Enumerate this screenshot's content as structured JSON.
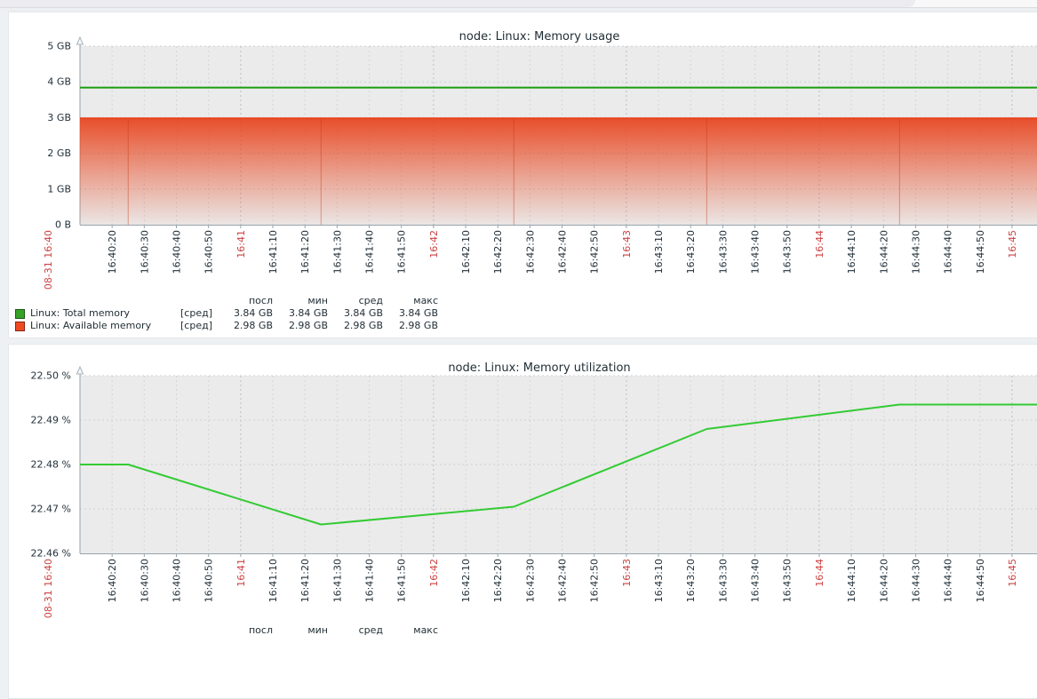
{
  "window": {
    "top_strip": {
      "active_area_color": "#ecebef",
      "rest_color": "#f8f8f9"
    }
  },
  "colors": {
    "page_background": "#eef1f3",
    "panel_background": "#ffffff",
    "plot_background": "#ebebeb",
    "grid_line": "#d5d5d5",
    "grid_minute_line": "#b6c0c8",
    "grid_horizontal_line": "#cdd2d6",
    "axis": "#96a3ab",
    "label_text": "#22303a",
    "minute_label_red": "#cc4242",
    "total_memory_green": "#1a9c14",
    "available_memory_red": "#e8431c",
    "utilization_green": "#33cb33",
    "legend_green_swatch": "#36a227",
    "legend_red_swatch": "#f04a22"
  },
  "x_axis": {
    "first_label": "08-31 16:40",
    "labels": [
      "16:40:20",
      "16:40:30",
      "16:40:40",
      "16:40:50",
      "16:41",
      "16:41:10",
      "16:41:20",
      "16:41:30",
      "16:41:40",
      "16:41:50",
      "16:42",
      "16:42:10",
      "16:42:20",
      "16:42:30",
      "16:42:40",
      "16:42:50",
      "16:43",
      "16:43:10",
      "16:43:20",
      "16:43:30",
      "16:43:40",
      "16:43:50",
      "16:44",
      "16:44:10",
      "16:44:20",
      "16:44:30",
      "16:44:40",
      "16:44:50",
      "16:45"
    ]
  },
  "charts": [
    {
      "title": "node: Linux: Memory usage",
      "y_axis_labels": [
        "5 GB",
        "4 GB",
        "3 GB",
        "2 GB",
        "1 GB",
        "0 B"
      ],
      "legend": {
        "headers": [
          "посл",
          "мин",
          "сред",
          "макс"
        ],
        "rows": [
          {
            "swatch_color": "#36a227",
            "name": "Linux: Total memory",
            "func": "[сред]",
            "values": [
              "3.84 GB",
              "3.84 GB",
              "3.84 GB",
              "3.84 GB"
            ]
          },
          {
            "swatch_color": "#f04a22",
            "name": "Linux: Available memory",
            "func": "[сред]",
            "values": [
              "2.98 GB",
              "2.98 GB",
              "2.98 GB",
              "2.98 GB"
            ]
          }
        ]
      }
    },
    {
      "title": "node: Linux: Memory utilization",
      "y_axis_labels": [
        "22.50 %",
        "22.49 %",
        "22.48 %",
        "22.47 %",
        "22.46 %"
      ],
      "legend": {
        "headers": [
          "посл",
          "мин",
          "сред",
          "макс"
        ],
        "rows": []
      }
    }
  ],
  "chart_data": [
    {
      "type": "area",
      "title": "node: Linux: Memory usage",
      "x_start": "16:40:10",
      "x_end": "16:45:08",
      "ylim_gb": [
        0,
        5
      ],
      "ytick_step_gb": 1,
      "grid": true,
      "legend_position": "bottom",
      "series": [
        {
          "name": "Linux: Total memory",
          "style": "line",
          "color": "#1a9c14",
          "constant_value_gb": 3.84
        },
        {
          "name": "Linux: Available memory",
          "style": "gradient_area",
          "color": "#e8431c",
          "constant_value_gb": 2.98,
          "segment_boundaries": [
            "16:40:25",
            "16:41:25",
            "16:42:25",
            "16:43:25",
            "16:44:25"
          ]
        }
      ],
      "stats": {
        "total": {
          "last": "3.84 GB",
          "min": "3.84 GB",
          "avg": "3.84 GB",
          "max": "3.84 GB"
        },
        "available": {
          "last": "2.98 GB",
          "min": "2.98 GB",
          "avg": "2.98 GB",
          "max": "2.98 GB"
        }
      }
    },
    {
      "type": "line",
      "title": "node: Linux: Memory utilization",
      "x_start": "16:40:10",
      "x_end": "16:45:08",
      "ylim_pct": [
        22.46,
        22.5
      ],
      "ytick_step_pct": 0.01,
      "grid": true,
      "series": [
        {
          "name": "Linux: Memory utilization",
          "color": "#33cb33",
          "points": [
            [
              "16:40:10",
              22.48
            ],
            [
              "16:40:25",
              22.48
            ],
            [
              "16:41:25",
              22.4665
            ],
            [
              "16:42:25",
              22.4705
            ],
            [
              "16:43:25",
              22.488
            ],
            [
              "16:44:25",
              22.4935
            ],
            [
              "16:45:08",
              22.4935
            ]
          ]
        }
      ]
    }
  ]
}
